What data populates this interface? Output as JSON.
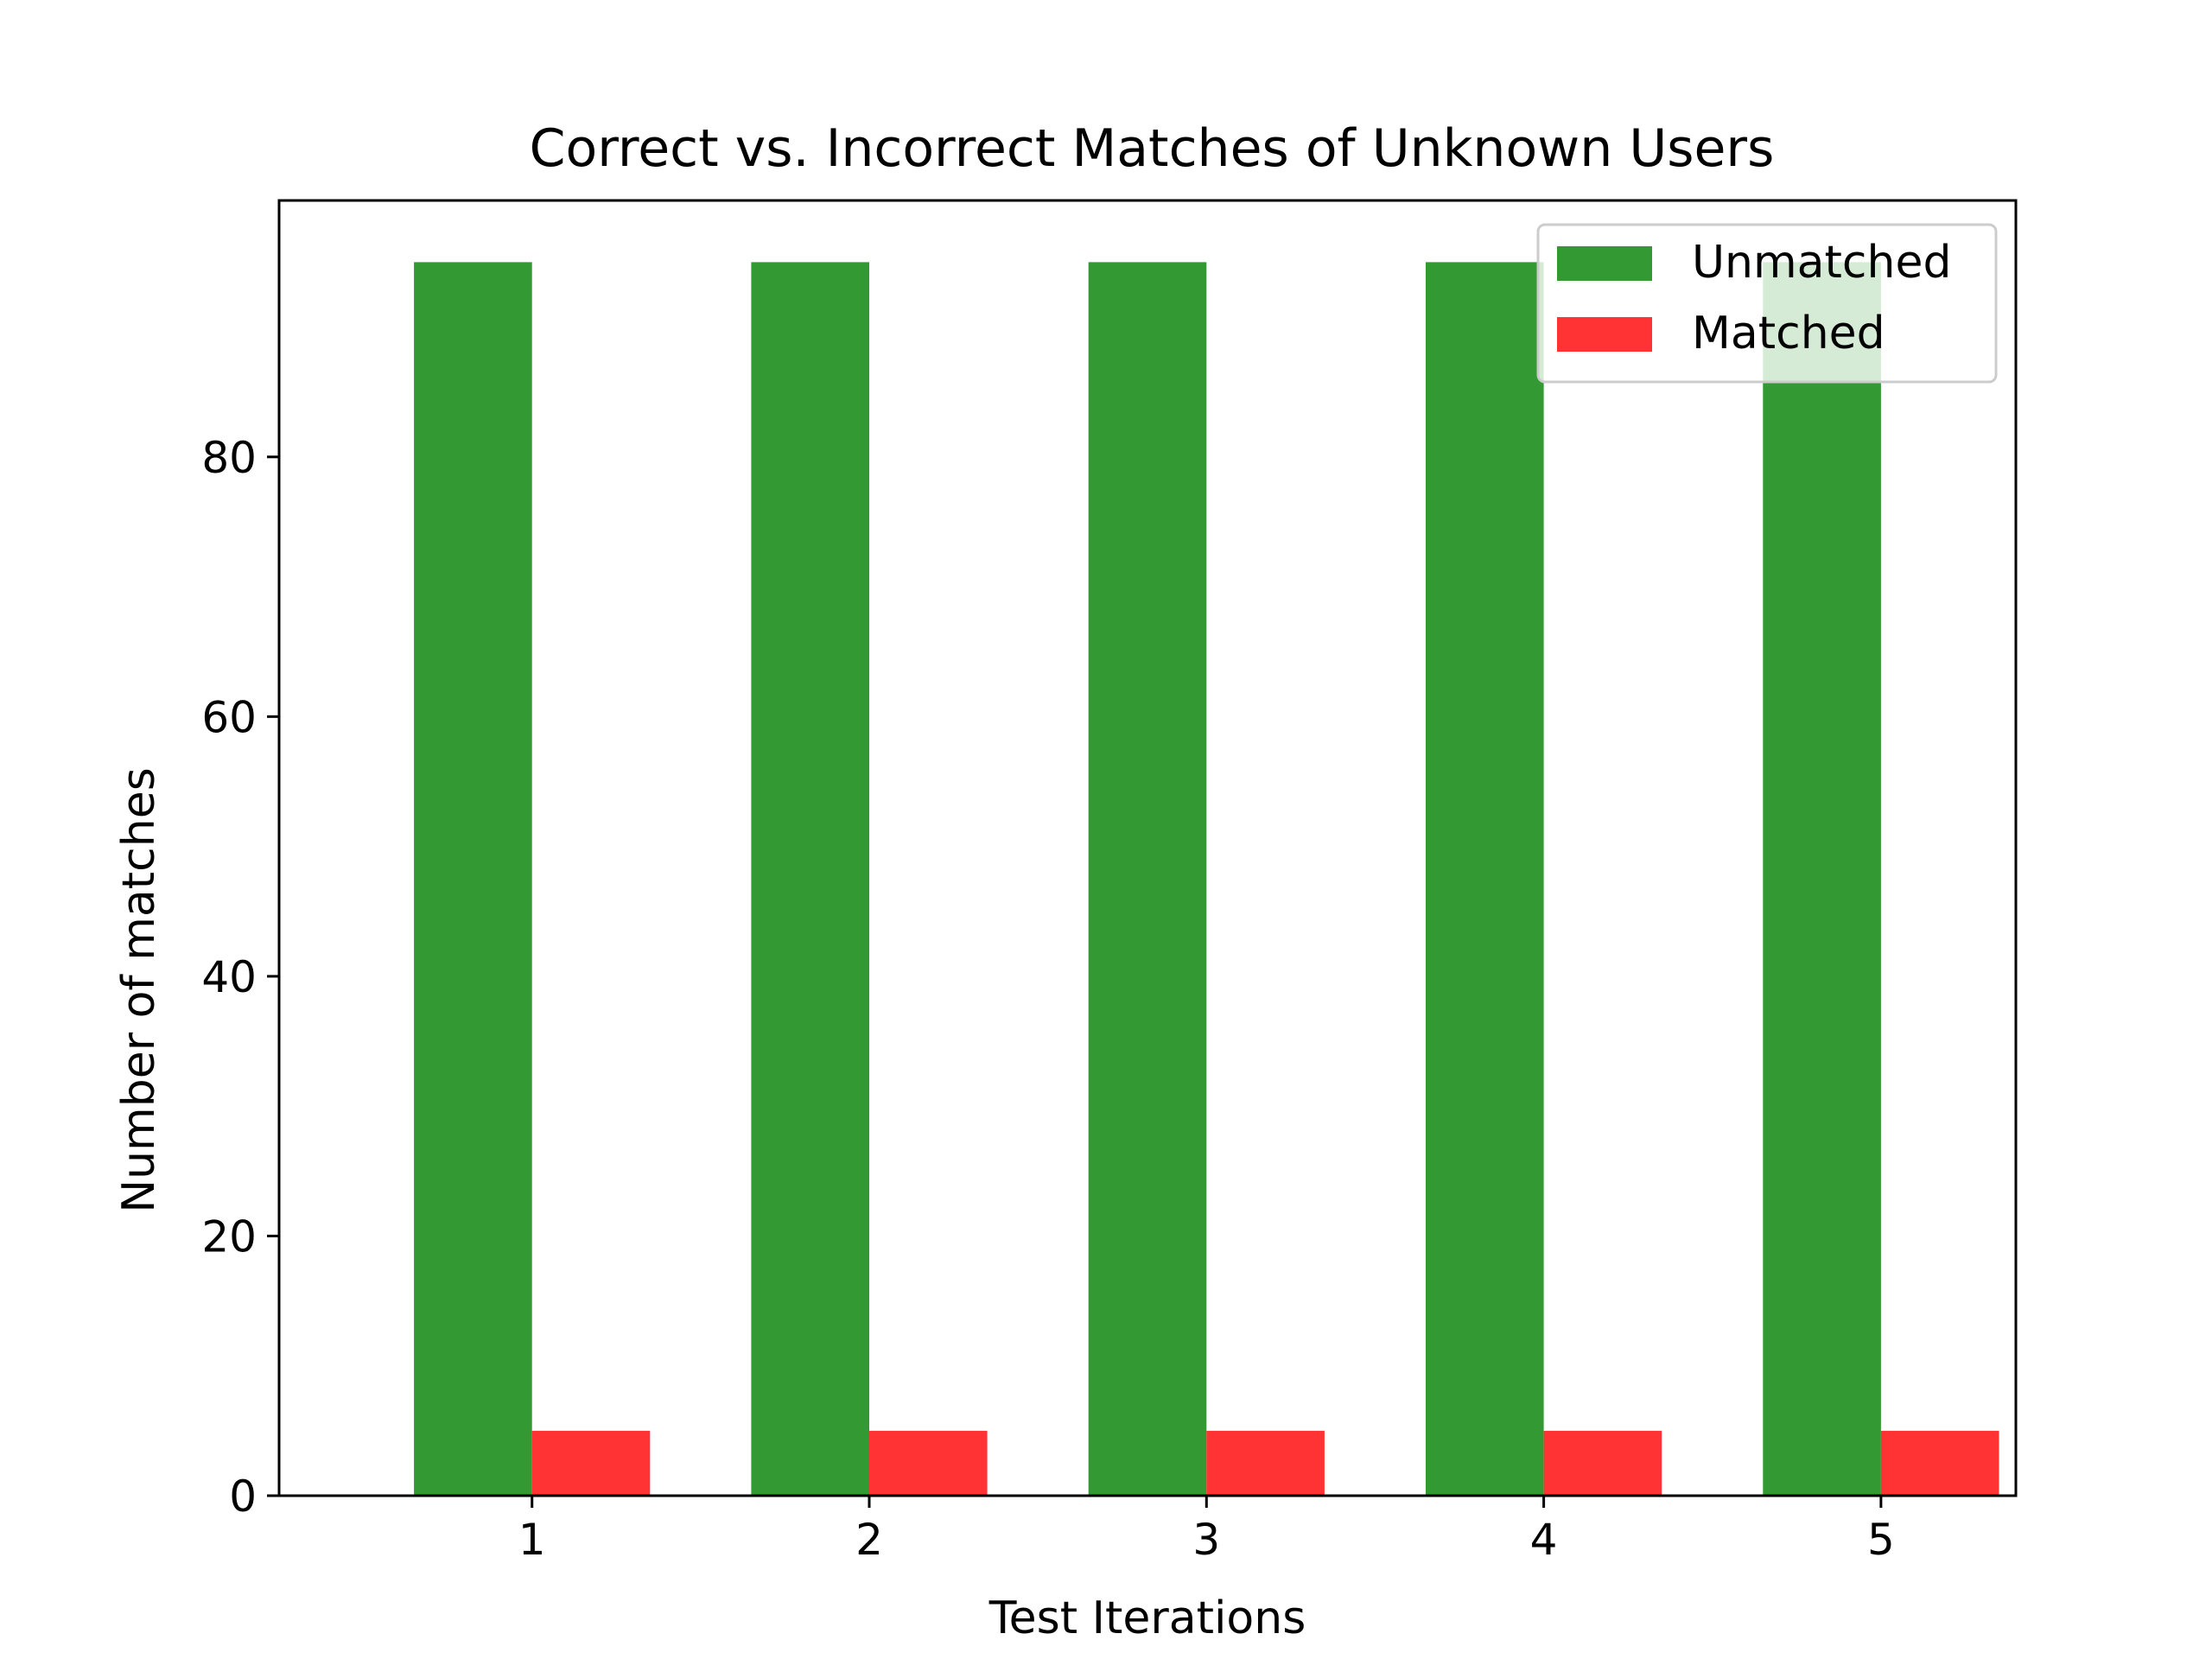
{
  "chart_data": {
    "type": "bar",
    "title": "Correct vs. Incorrect Matches of Unknown Users",
    "xlabel": "Test Iterations",
    "ylabel": "Number of matches",
    "categories": [
      "1",
      "2",
      "3",
      "4",
      "5"
    ],
    "series": [
      {
        "name": "Unmatched",
        "color": "#339933",
        "values": [
          95,
          95,
          95,
          95,
          95
        ]
      },
      {
        "name": "Matched",
        "color": "#ff3333",
        "values": [
          5,
          5,
          5,
          5,
          5
        ]
      }
    ],
    "ylim": [
      0,
      99.75
    ],
    "yticks": [
      0,
      20,
      40,
      60,
      80
    ],
    "grid": false,
    "legend": "top-right"
  }
}
